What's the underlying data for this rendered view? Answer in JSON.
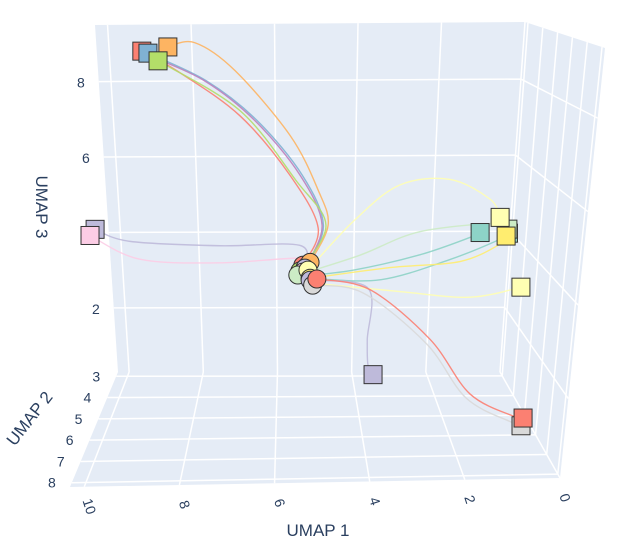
{
  "chart_data": {
    "type": "scatter3d",
    "grid": true,
    "legend": "none",
    "axes": {
      "x": {
        "title": "UMAP 1",
        "range": [
          0,
          10.3
        ],
        "ticks": [
          0,
          2,
          4,
          6,
          8,
          10
        ],
        "direction": "decreasing-left-to-right"
      },
      "y": {
        "title": "UMAP 2",
        "range": [
          2.8,
          8.2
        ],
        "ticks": [
          3,
          4,
          5,
          6,
          7,
          8
        ]
      },
      "z": {
        "title": "UMAP 3",
        "range": [
          0.3,
          9.5
        ],
        "ticks": [
          2,
          4,
          6,
          8
        ]
      }
    },
    "colors": {
      "plane": "#e5ecf6",
      "grid": "#ffffff",
      "marker_outline": "#333333"
    },
    "start_marker": "circle",
    "end_marker": "square",
    "trajectories": [
      {
        "color": "#fb8072",
        "start_color": "#fb8072",
        "end_color": "#fb8072",
        "points": [
          [
            5.33,
            4.42,
            3.74
          ],
          [
            4.97,
            4.42,
            4.65
          ],
          [
            5.61,
            4.42,
            5.95
          ],
          [
            6.71,
            4.42,
            7.42
          ],
          [
            7.99,
            4.42,
            8.48
          ],
          [
            8.8,
            4.42,
            9.02
          ]
        ]
      },
      {
        "color": "#80b1d3",
        "start_color": "#80b1d3",
        "end_color": "#80b1d3",
        "points": [
          [
            5.25,
            4.42,
            3.7
          ],
          [
            4.85,
            4.42,
            4.72
          ],
          [
            5.33,
            4.42,
            5.95
          ],
          [
            6.33,
            4.42,
            7.3
          ],
          [
            7.42,
            4.42,
            8.28
          ],
          [
            8.67,
            4.42,
            8.97
          ]
        ]
      },
      {
        "color": "#bc80bd",
        "start_color": "#bc80bd",
        "end_color": null,
        "points": [
          [
            5.28,
            4.42,
            3.67
          ],
          [
            4.88,
            4.42,
            4.72
          ],
          [
            5.38,
            4.42,
            5.95
          ],
          [
            6.38,
            4.42,
            7.3
          ],
          [
            7.46,
            4.42,
            8.28
          ],
          [
            8.63,
            4.42,
            8.9
          ]
        ]
      },
      {
        "color": "#fdb462",
        "start_color": "#fdb462",
        "end_color": "#fdb462",
        "points": [
          [
            5.16,
            4.42,
            3.81
          ],
          [
            4.74,
            4.42,
            4.72
          ],
          [
            4.97,
            4.42,
            5.58
          ],
          [
            5.6,
            4.42,
            6.93
          ],
          [
            6.79,
            4.42,
            8.53
          ],
          [
            7.64,
            4.42,
            9.22
          ],
          [
            8.23,
            4.42,
            9.12
          ]
        ]
      },
      {
        "color": "#b3de69",
        "start_color": "#b3de69",
        "end_color": "#b3de69",
        "points": [
          [
            5.4,
            4.42,
            3.6
          ],
          [
            4.79,
            4.42,
            4.72
          ],
          [
            5.48,
            4.42,
            5.83
          ],
          [
            6.71,
            4.42,
            7.55
          ],
          [
            8.46,
            4.42,
            8.78
          ]
        ]
      },
      {
        "color": "#bebada",
        "start_color": "#bebada",
        "end_color": "#bebada",
        "points": [
          [
            5.28,
            4.42,
            3.67
          ],
          [
            5.4,
            4.42,
            4.23
          ],
          [
            7.26,
            4.42,
            4.23
          ],
          [
            9.35,
            4.42,
            4.35
          ],
          [
            10.14,
            4.42,
            4.65
          ]
        ]
      },
      {
        "color": "#fccde5",
        "start_color": "#fccde5",
        "end_color": "#fccde5",
        "points": [
          [
            5.33,
            4.42,
            3.57
          ],
          [
            5.28,
            4.42,
            3.91
          ],
          [
            7.28,
            4.42,
            3.81
          ],
          [
            9.15,
            4.42,
            3.91
          ],
          [
            10.27,
            4.42,
            4.5
          ]
        ]
      },
      {
        "color": "#8dd3c7",
        "start_color": "#8dd3c7",
        "end_color": "#8dd3c7",
        "points": [
          [
            5.16,
            4.42,
            3.49
          ],
          [
            4.1,
            4.42,
            3.62
          ],
          [
            2.59,
            4.42,
            3.98
          ],
          [
            1.44,
            4.42,
            4.4
          ],
          [
            1.21,
            4.42,
            4.52
          ]
        ]
      },
      {
        "color": "#8dd3c7",
        "start_color": "#8dd3c7",
        "end_color": "#8dd3c7",
        "points": [
          [
            5.16,
            4.42,
            3.42
          ],
          [
            3.51,
            4.42,
            3.37
          ],
          [
            1.88,
            4.42,
            3.86
          ],
          [
            0.74,
            4.42,
            4.35
          ],
          [
            0.55,
            4.42,
            4.5
          ]
        ]
      },
      {
        "color": "#ccebc5",
        "start_color": "#ccebc5",
        "end_color": "#ccebc5",
        "points": [
          [
            5.45,
            4.42,
            3.5
          ],
          [
            3.99,
            4.42,
            3.98
          ],
          [
            2.61,
            4.42,
            4.55
          ],
          [
            0.76,
            4.42,
            4.75
          ],
          [
            0.57,
            4.42,
            4.6
          ]
        ]
      },
      {
        "color": "#ffffb3",
        "start_color": "#ffffb3",
        "end_color": "#ffffb3",
        "points": [
          [
            5.21,
            4.42,
            3.62
          ],
          [
            4.12,
            4.42,
            4.85
          ],
          [
            3.11,
            4.42,
            5.7
          ],
          [
            1.97,
            4.42,
            5.83
          ],
          [
            1.03,
            4.42,
            5.34
          ],
          [
            0.77,
            4.42,
            4.89
          ]
        ]
      },
      {
        "color": "#ffed6f",
        "start_color": "#ffed6f",
        "end_color": "#ffed6f",
        "points": [
          [
            5.16,
            4.42,
            3.42
          ],
          [
            3.28,
            4.42,
            3.67
          ],
          [
            1.64,
            4.42,
            3.81
          ],
          [
            0.73,
            4.42,
            4.23
          ],
          [
            0.6,
            4.42,
            4.43
          ]
        ]
      },
      {
        "color": "#ffffb3",
        "start_color": "#ffffb3",
        "end_color": "#ffffb3",
        "points": [
          [
            5.1,
            4.42,
            3.3
          ],
          [
            3.03,
            4.42,
            3.08
          ],
          [
            1.35,
            4.42,
            2.93
          ],
          [
            0.16,
            4.42,
            3.17
          ]
        ]
      },
      {
        "color": "#bebada",
        "start_color": "#bebada",
        "end_color": "#bebada",
        "points": [
          [
            5.16,
            4.42,
            3.37
          ],
          [
            3.79,
            4.42,
            3.17
          ],
          [
            3.78,
            4.42,
            1.9
          ],
          [
            3.75,
            4.42,
            1.28
          ],
          [
            3.62,
            4.42,
            1.04
          ]
        ]
      },
      {
        "color": "#d9d9d9",
        "start_color": "#d9d9d9",
        "end_color": "#d9d9d9",
        "points": [
          [
            5.1,
            4.42,
            3.25
          ],
          [
            3.9,
            4.42,
            3.05
          ],
          [
            2.35,
            4.42,
            1.8
          ],
          [
            1.3,
            4.42,
            0.45
          ],
          [
            0.6,
            6.04,
            0.62
          ],
          [
            0.72,
            7.39,
            1.11
          ]
        ]
      },
      {
        "color": "#fb8072",
        "start_color": "#fb8072",
        "end_color": "#fb8072",
        "points": [
          [
            5.0,
            4.42,
            3.4
          ],
          [
            3.74,
            4.42,
            3.13
          ],
          [
            2.26,
            4.42,
            1.9
          ],
          [
            1.21,
            4.42,
            0.55
          ],
          [
            0.52,
            6.04,
            0.74
          ],
          [
            0.69,
            7.39,
            1.28
          ]
        ]
      }
    ]
  }
}
